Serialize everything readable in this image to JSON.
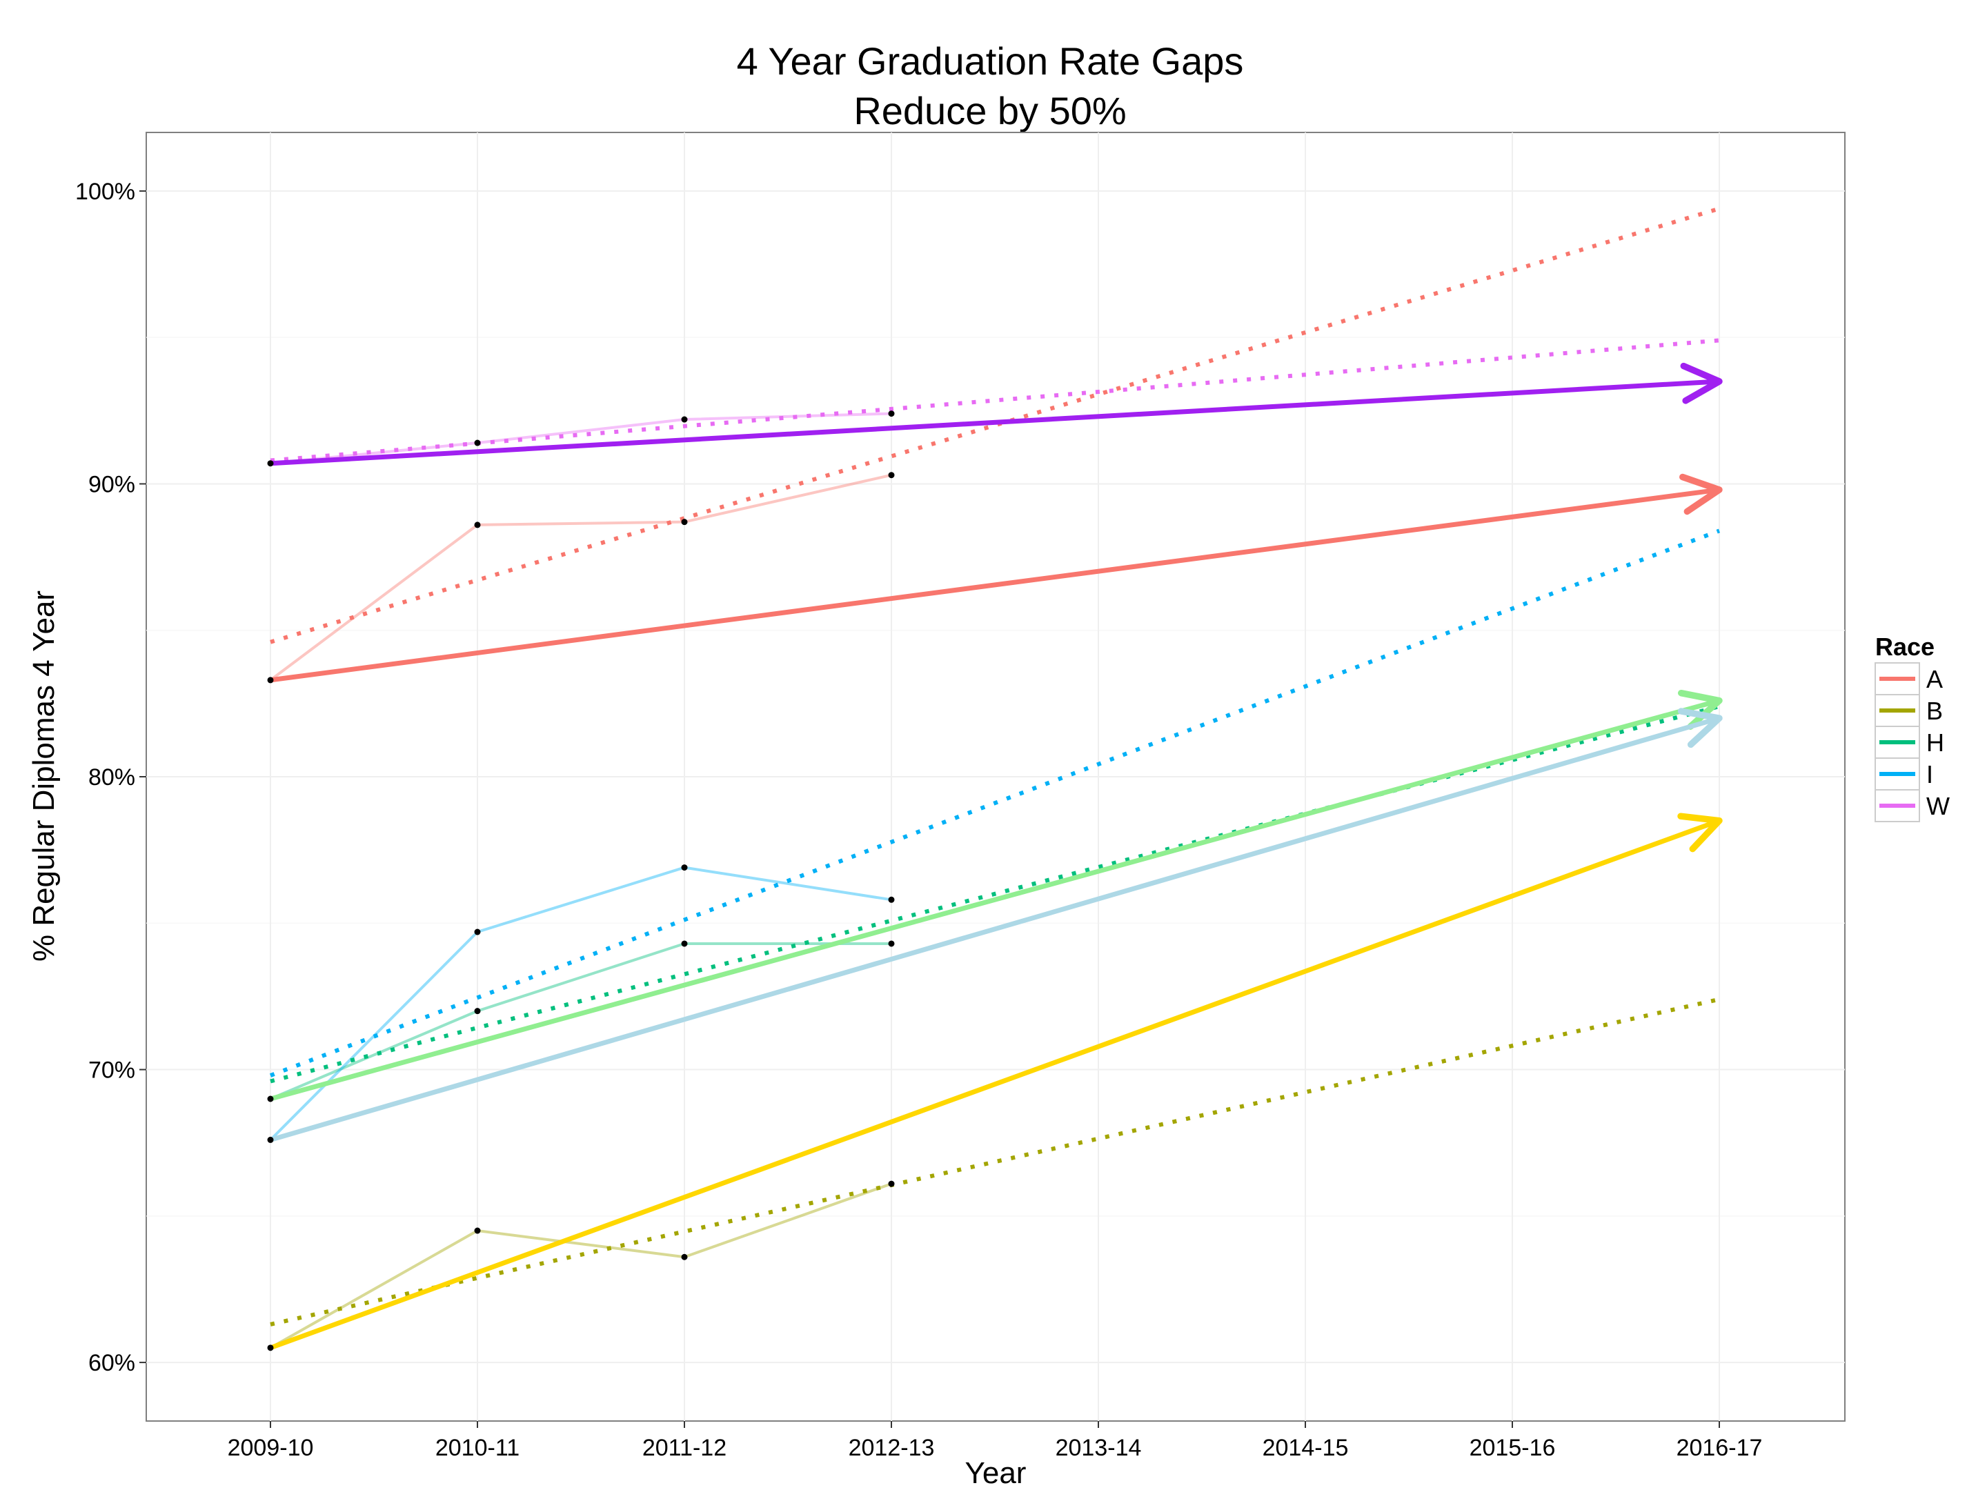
{
  "chart_data": {
    "type": "line",
    "title": "4 Year Graduation Rate Gaps",
    "subtitle": "Reduce by 50%",
    "xlabel": "Year",
    "ylabel": "% Regular Diplomas 4 Year",
    "categories": [
      "2009-10",
      "2010-11",
      "2011-12",
      "2012-13",
      "2013-14",
      "2014-15",
      "2015-16",
      "2016-17"
    ],
    "ylim": [
      58.0,
      102.0
    ],
    "yticks": [
      60,
      70,
      80,
      90,
      100
    ],
    "ytick_labels": [
      "60%",
      "70%",
      "80%",
      "90%",
      "100%"
    ],
    "grid": true,
    "legend": {
      "title": "Race",
      "position": "right",
      "entries": [
        {
          "label": "A",
          "color": "#F8766D"
        },
        {
          "label": "B",
          "color": "#A3A500"
        },
        {
          "label": "H",
          "color": "#00BF7D"
        },
        {
          "label": "I",
          "color": "#00B0F6"
        },
        {
          "label": "W",
          "color": "#E76BF3"
        }
      ]
    },
    "series": [
      {
        "name": "A",
        "color": "#F8766D",
        "actual": [
          83.3,
          88.6,
          88.7,
          90.3
        ],
        "trend": [
          84.6,
          99.4
        ],
        "target": {
          "start": 83.3,
          "end": 89.8,
          "color": "#F8766D"
        }
      },
      {
        "name": "B",
        "color": "#A3A500",
        "actual": [
          60.5,
          64.5,
          63.6,
          66.1
        ],
        "trend": [
          61.3,
          72.4
        ],
        "target": {
          "start": 60.5,
          "end": 78.5,
          "color": "#FFD700"
        }
      },
      {
        "name": "H",
        "color": "#00BF7D",
        "actual": [
          69.0,
          72.0,
          74.3,
          74.3
        ],
        "trend": [
          69.6,
          82.4
        ],
        "target": {
          "start": 69.0,
          "end": 82.6,
          "color": "#90EE90"
        }
      },
      {
        "name": "I",
        "color": "#00B0F6",
        "actual": [
          67.6,
          74.7,
          76.9,
          75.8
        ],
        "trend": [
          69.8,
          88.4
        ],
        "target": {
          "start": 67.6,
          "end": 82.0,
          "color": "#ADD8E6"
        }
      },
      {
        "name": "W",
        "color": "#E76BF3",
        "actual": [
          90.7,
          91.4,
          92.2,
          92.4
        ],
        "trend": [
          90.8,
          94.9
        ],
        "target": {
          "start": 90.7,
          "end": 93.5,
          "color": "#A020F0"
        }
      }
    ]
  }
}
